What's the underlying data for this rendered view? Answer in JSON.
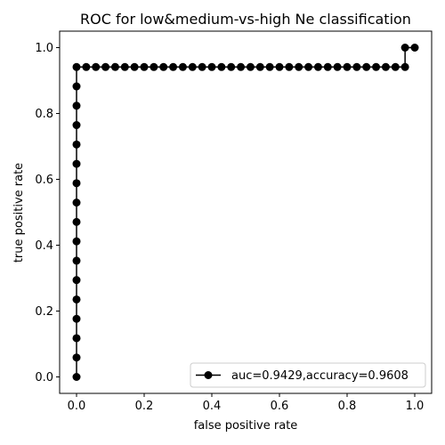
{
  "chart_data": {
    "type": "line",
    "title": "ROC for low&medium-vs-high Ne classification",
    "xlabel": "false positive rate",
    "ylabel": "true positive rate",
    "xlim": [
      -0.05,
      1.05
    ],
    "ylim": [
      -0.05,
      1.05
    ],
    "xticks": [
      0.0,
      0.2,
      0.4,
      0.6,
      0.8,
      1.0
    ],
    "xtick_labels": [
      "0.0",
      "0.2",
      "0.4",
      "0.6",
      "0.8",
      "1.0"
    ],
    "yticks": [
      0.0,
      0.2,
      0.4,
      0.6,
      0.8,
      1.0
    ],
    "ytick_labels": [
      "0.0",
      "0.2",
      "0.4",
      "0.6",
      "0.8",
      "1.0"
    ],
    "grid": false,
    "legend_position": "lower-right",
    "colors": {
      "series": "#000000"
    },
    "series": [
      {
        "name": "auc=0.9429,accuracy=0.9608",
        "marker": "circle",
        "x": [
          0.0,
          0.0,
          0.0,
          0.0,
          0.0,
          0.0,
          0.0,
          0.0,
          0.0,
          0.0,
          0.0,
          0.0,
          0.0,
          0.0,
          0.0,
          0.0,
          0.0,
          0.0286,
          0.0571,
          0.0857,
          0.1143,
          0.1429,
          0.1714,
          0.2,
          0.2286,
          0.2571,
          0.2857,
          0.3143,
          0.3429,
          0.3714,
          0.4,
          0.4286,
          0.4571,
          0.4857,
          0.5143,
          0.5429,
          0.5714,
          0.6,
          0.6286,
          0.6571,
          0.6857,
          0.7143,
          0.7429,
          0.7714,
          0.8,
          0.8286,
          0.8571,
          0.8857,
          0.9143,
          0.9429,
          0.9714,
          0.9714,
          1.0
        ],
        "y": [
          0.0,
          0.0588,
          0.1176,
          0.1765,
          0.2353,
          0.2941,
          0.3529,
          0.4118,
          0.4706,
          0.5294,
          0.5882,
          0.6471,
          0.7059,
          0.7647,
          0.8235,
          0.8824,
          0.9412,
          0.9412,
          0.9412,
          0.9412,
          0.9412,
          0.9412,
          0.9412,
          0.9412,
          0.9412,
          0.9412,
          0.9412,
          0.9412,
          0.9412,
          0.9412,
          0.9412,
          0.9412,
          0.9412,
          0.9412,
          0.9412,
          0.9412,
          0.9412,
          0.9412,
          0.9412,
          0.9412,
          0.9412,
          0.9412,
          0.9412,
          0.9412,
          0.9412,
          0.9412,
          0.9412,
          0.9412,
          0.9412,
          0.9412,
          0.9412,
          1.0,
          1.0
        ]
      }
    ]
  }
}
